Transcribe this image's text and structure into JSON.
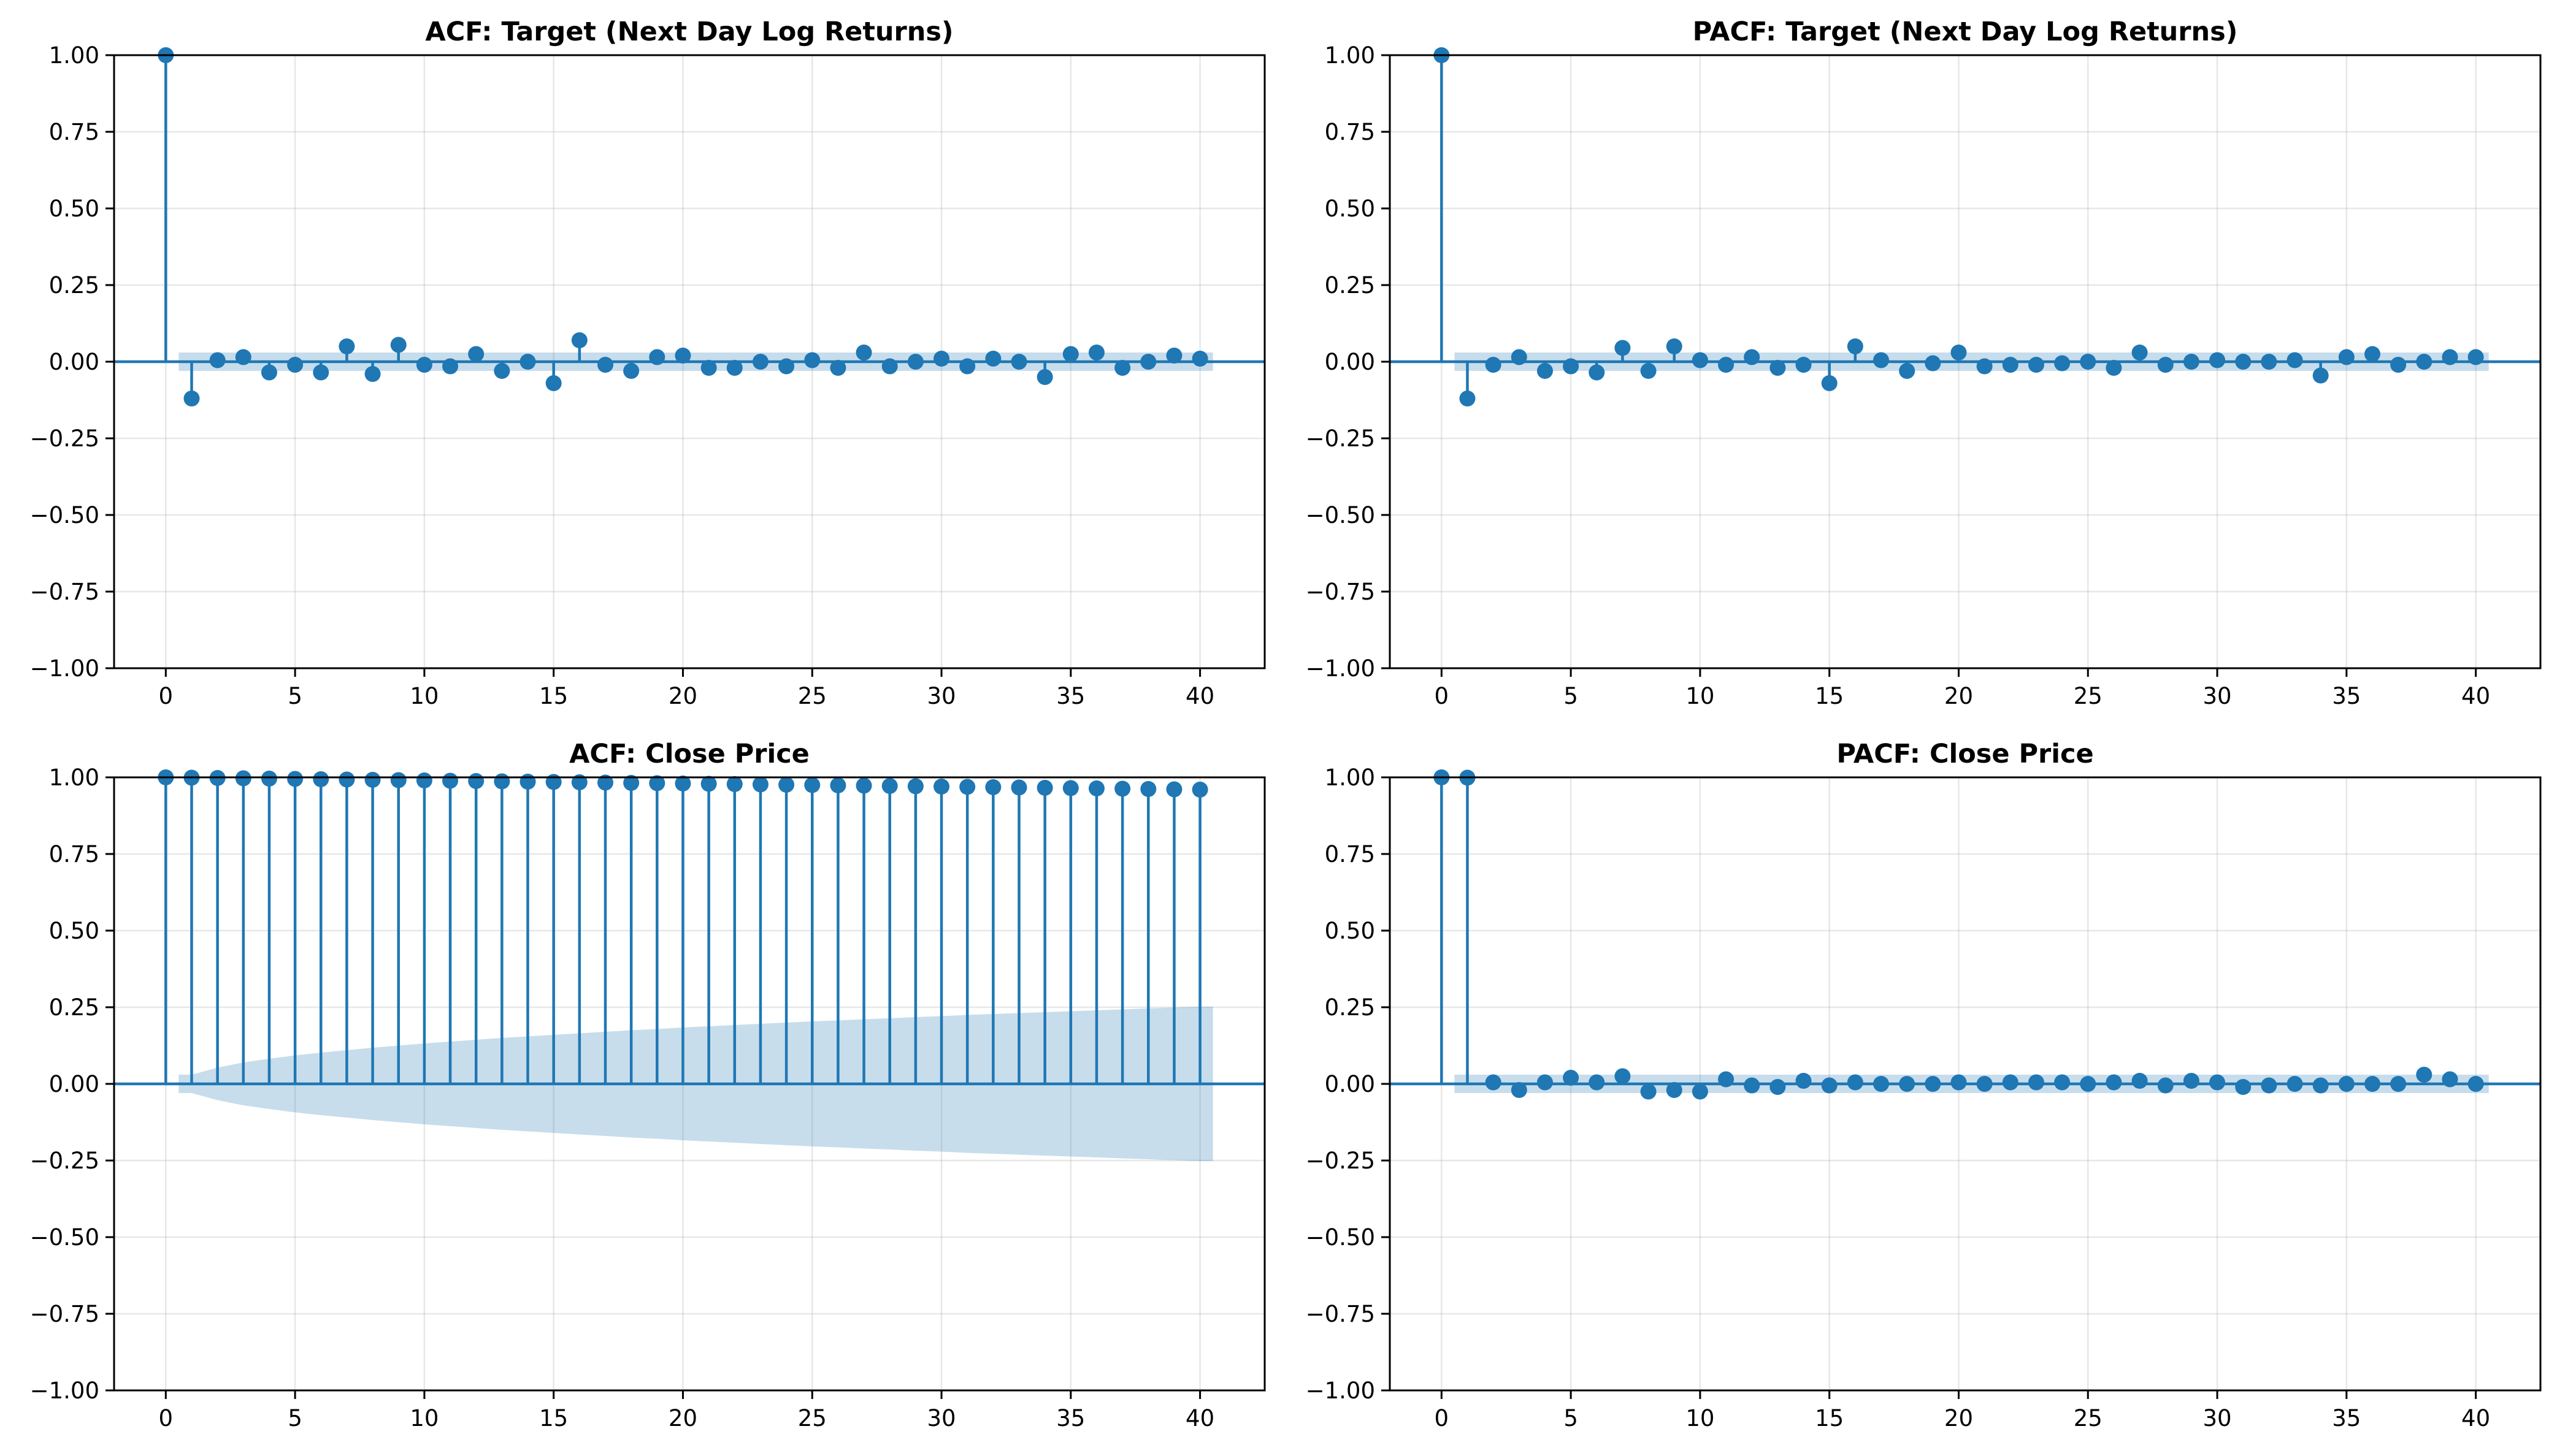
{
  "colors": {
    "stem": "#1f77b4",
    "band": "#1f77b4",
    "grid": "#b0b0b0",
    "axis": "#000000"
  },
  "chart_data": [
    {
      "type": "stem",
      "title": "ACF: Target (Next Day Log Returns)",
      "xlim": [
        -2,
        42.5
      ],
      "ylim": [
        -1.0,
        1.0
      ],
      "xticks": [
        0,
        5,
        10,
        15,
        20,
        25,
        30,
        35,
        40
      ],
      "xtick_labels": [
        "0",
        "5",
        "10",
        "15",
        "20",
        "25",
        "30",
        "35",
        "40"
      ],
      "yticks": [
        -1.0,
        -0.75,
        -0.5,
        -0.25,
        0.0,
        0.25,
        0.5,
        0.75,
        1.0
      ],
      "ytick_labels": [
        "−1.00",
        "−0.75",
        "−0.50",
        "−0.25",
        "0.00",
        "0.25",
        "0.50",
        "0.75",
        "1.00"
      ],
      "grid": true,
      "lags": [
        0,
        1,
        2,
        3,
        4,
        5,
        6,
        7,
        8,
        9,
        10,
        11,
        12,
        13,
        14,
        15,
        16,
        17,
        18,
        19,
        20,
        21,
        22,
        23,
        24,
        25,
        26,
        27,
        28,
        29,
        30,
        31,
        32,
        33,
        34,
        35,
        36,
        37,
        38,
        39,
        40
      ],
      "values": [
        1.0,
        -0.12,
        0.005,
        0.015,
        -0.035,
        -0.01,
        -0.035,
        0.05,
        -0.04,
        0.055,
        -0.01,
        -0.015,
        0.025,
        -0.03,
        0.0,
        -0.07,
        0.07,
        -0.01,
        -0.03,
        0.015,
        0.02,
        -0.02,
        -0.02,
        0.0,
        -0.015,
        0.005,
        -0.02,
        0.03,
        -0.015,
        0.0,
        0.01,
        -0.015,
        0.01,
        0.0,
        -0.05,
        0.025,
        0.03,
        -0.02,
        0.0,
        0.02,
        0.01
      ],
      "conf_band": [
        0.0,
        0.03,
        0.03,
        0.03,
        0.03,
        0.03,
        0.03,
        0.03,
        0.03,
        0.03,
        0.03,
        0.03,
        0.03,
        0.03,
        0.03,
        0.03,
        0.03,
        0.03,
        0.03,
        0.03,
        0.03,
        0.03,
        0.03,
        0.03,
        0.03,
        0.03,
        0.03,
        0.03,
        0.03,
        0.03,
        0.03,
        0.03,
        0.03,
        0.03,
        0.03,
        0.03,
        0.03,
        0.03,
        0.03,
        0.03,
        0.03
      ]
    },
    {
      "type": "stem",
      "title": "PACF: Target (Next Day Log Returns)",
      "xlim": [
        -2,
        42.5
      ],
      "ylim": [
        -1.0,
        1.0
      ],
      "xticks": [
        0,
        5,
        10,
        15,
        20,
        25,
        30,
        35,
        40
      ],
      "xtick_labels": [
        "0",
        "5",
        "10",
        "15",
        "20",
        "25",
        "30",
        "35",
        "40"
      ],
      "yticks": [
        -1.0,
        -0.75,
        -0.5,
        -0.25,
        0.0,
        0.25,
        0.5,
        0.75,
        1.0
      ],
      "ytick_labels": [
        "−1.00",
        "−0.75",
        "−0.50",
        "−0.25",
        "0.00",
        "0.25",
        "0.50",
        "0.75",
        "1.00"
      ],
      "grid": true,
      "lags": [
        0,
        1,
        2,
        3,
        4,
        5,
        6,
        7,
        8,
        9,
        10,
        11,
        12,
        13,
        14,
        15,
        16,
        17,
        18,
        19,
        20,
        21,
        22,
        23,
        24,
        25,
        26,
        27,
        28,
        29,
        30,
        31,
        32,
        33,
        34,
        35,
        36,
        37,
        38,
        39,
        40
      ],
      "values": [
        1.0,
        -0.12,
        -0.01,
        0.015,
        -0.03,
        -0.015,
        -0.035,
        0.045,
        -0.03,
        0.05,
        0.005,
        -0.01,
        0.015,
        -0.02,
        -0.01,
        -0.07,
        0.05,
        0.005,
        -0.03,
        -0.005,
        0.03,
        -0.015,
        -0.01,
        -0.01,
        -0.005,
        0.0,
        -0.02,
        0.03,
        -0.01,
        0.0,
        0.005,
        0.0,
        0.0,
        0.005,
        -0.045,
        0.015,
        0.025,
        -0.01,
        0.0,
        0.015,
        0.015
      ],
      "conf_band": [
        0.0,
        0.03,
        0.03,
        0.03,
        0.03,
        0.03,
        0.03,
        0.03,
        0.03,
        0.03,
        0.03,
        0.03,
        0.03,
        0.03,
        0.03,
        0.03,
        0.03,
        0.03,
        0.03,
        0.03,
        0.03,
        0.03,
        0.03,
        0.03,
        0.03,
        0.03,
        0.03,
        0.03,
        0.03,
        0.03,
        0.03,
        0.03,
        0.03,
        0.03,
        0.03,
        0.03,
        0.03,
        0.03,
        0.03,
        0.03,
        0.03
      ]
    },
    {
      "type": "stem",
      "title": "ACF: Close Price",
      "xlim": [
        -2,
        42.5
      ],
      "ylim": [
        -1.0,
        1.0
      ],
      "xticks": [
        0,
        5,
        10,
        15,
        20,
        25,
        30,
        35,
        40
      ],
      "xtick_labels": [
        "0",
        "5",
        "10",
        "15",
        "20",
        "25",
        "30",
        "35",
        "40"
      ],
      "yticks": [
        -1.0,
        -0.75,
        -0.5,
        -0.25,
        0.0,
        0.25,
        0.5,
        0.75,
        1.0
      ],
      "ytick_labels": [
        "−1.00",
        "−0.75",
        "−0.50",
        "−0.25",
        "0.00",
        "0.25",
        "0.50",
        "0.75",
        "1.00"
      ],
      "grid": true,
      "lags": [
        0,
        1,
        2,
        3,
        4,
        5,
        6,
        7,
        8,
        9,
        10,
        11,
        12,
        13,
        14,
        15,
        16,
        17,
        18,
        19,
        20,
        21,
        22,
        23,
        24,
        25,
        26,
        27,
        28,
        29,
        30,
        31,
        32,
        33,
        34,
        35,
        36,
        37,
        38,
        39,
        40
      ],
      "values": [
        1.0,
        0.999,
        0.998,
        0.997,
        0.996,
        0.995,
        0.994,
        0.993,
        0.992,
        0.991,
        0.99,
        0.989,
        0.988,
        0.987,
        0.986,
        0.985,
        0.984,
        0.983,
        0.982,
        0.981,
        0.98,
        0.979,
        0.978,
        0.977,
        0.976,
        0.975,
        0.974,
        0.973,
        0.972,
        0.971,
        0.97,
        0.969,
        0.968,
        0.967,
        0.966,
        0.965,
        0.964,
        0.963,
        0.962,
        0.961,
        0.96
      ],
      "conf_band": [
        0.0,
        0.03,
        0.053,
        0.07,
        0.082,
        0.093,
        0.102,
        0.11,
        0.118,
        0.125,
        0.132,
        0.138,
        0.144,
        0.15,
        0.155,
        0.16,
        0.165,
        0.17,
        0.175,
        0.179,
        0.184,
        0.188,
        0.192,
        0.196,
        0.2,
        0.204,
        0.207,
        0.211,
        0.214,
        0.218,
        0.221,
        0.225,
        0.228,
        0.231,
        0.234,
        0.237,
        0.24,
        0.243,
        0.246,
        0.249,
        0.252
      ]
    },
    {
      "type": "stem",
      "title": "PACF: Close Price",
      "xlim": [
        -2,
        42.5
      ],
      "ylim": [
        -1.0,
        1.0
      ],
      "xticks": [
        0,
        5,
        10,
        15,
        20,
        25,
        30,
        35,
        40
      ],
      "xtick_labels": [
        "0",
        "5",
        "10",
        "15",
        "20",
        "25",
        "30",
        "35",
        "40"
      ],
      "yticks": [
        -1.0,
        -0.75,
        -0.5,
        -0.25,
        0.0,
        0.25,
        0.5,
        0.75,
        1.0
      ],
      "ytick_labels": [
        "−1.00",
        "−0.75",
        "−0.50",
        "−0.25",
        "0.00",
        "0.25",
        "0.50",
        "0.75",
        "1.00"
      ],
      "grid": true,
      "lags": [
        0,
        1,
        2,
        3,
        4,
        5,
        6,
        7,
        8,
        9,
        10,
        11,
        12,
        13,
        14,
        15,
        16,
        17,
        18,
        19,
        20,
        21,
        22,
        23,
        24,
        25,
        26,
        27,
        28,
        29,
        30,
        31,
        32,
        33,
        34,
        35,
        36,
        37,
        38,
        39,
        40
      ],
      "values": [
        1.0,
        0.999,
        0.005,
        -0.02,
        0.005,
        0.02,
        0.005,
        0.025,
        -0.025,
        -0.02,
        -0.025,
        0.015,
        -0.005,
        -0.01,
        0.01,
        -0.005,
        0.005,
        0.0,
        0.0,
        0.0,
        0.005,
        0.0,
        0.005,
        0.005,
        0.005,
        0.0,
        0.005,
        0.01,
        -0.005,
        0.01,
        0.005,
        -0.01,
        -0.005,
        0.0,
        -0.005,
        0.0,
        0.0,
        0.0,
        0.03,
        0.015,
        0.0
      ],
      "conf_band": [
        0.0,
        0.03,
        0.03,
        0.03,
        0.03,
        0.03,
        0.03,
        0.03,
        0.03,
        0.03,
        0.03,
        0.03,
        0.03,
        0.03,
        0.03,
        0.03,
        0.03,
        0.03,
        0.03,
        0.03,
        0.03,
        0.03,
        0.03,
        0.03,
        0.03,
        0.03,
        0.03,
        0.03,
        0.03,
        0.03,
        0.03,
        0.03,
        0.03,
        0.03,
        0.03,
        0.03,
        0.03,
        0.03,
        0.03,
        0.03,
        0.03
      ]
    }
  ]
}
